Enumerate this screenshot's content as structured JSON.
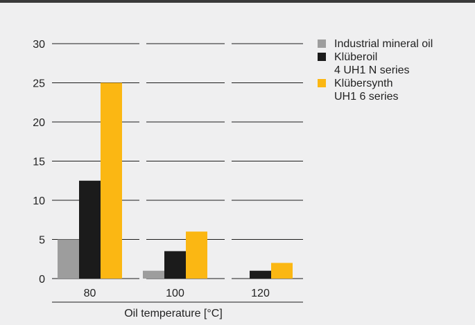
{
  "chart_data": {
    "type": "bar",
    "categories": [
      "80",
      "100",
      "120"
    ],
    "series": [
      {
        "name": "Industrial mineral oil",
        "values": [
          5,
          1,
          0
        ]
      },
      {
        "name": "Klüberoil 4 UH1 N series",
        "values": [
          12.5,
          3.5,
          1
        ]
      },
      {
        "name": "Klübersynth UH1 6 series",
        "values": [
          25,
          6,
          2
        ]
      }
    ],
    "xlabel": "Oil temperature [°C]",
    "ylabel": "",
    "ylim": [
      0,
      30
    ],
    "yticks": [
      0,
      5,
      10,
      15,
      20,
      25,
      30
    ],
    "grid": true,
    "legend_position": "top-right"
  },
  "legend": [
    {
      "lines": [
        "Industrial mineral oil"
      ],
      "color": "#9d9d9d"
    },
    {
      "lines": [
        "Klüberoil",
        "4 UH1 N series"
      ],
      "color": "#1b1b1b"
    },
    {
      "lines": [
        "Klübersynth",
        "UH1 6 series"
      ],
      "color": "#fbb713"
    }
  ],
  "colors": {
    "background": "#efeff0",
    "grid": "#1b1b1b",
    "text": "#222222"
  }
}
